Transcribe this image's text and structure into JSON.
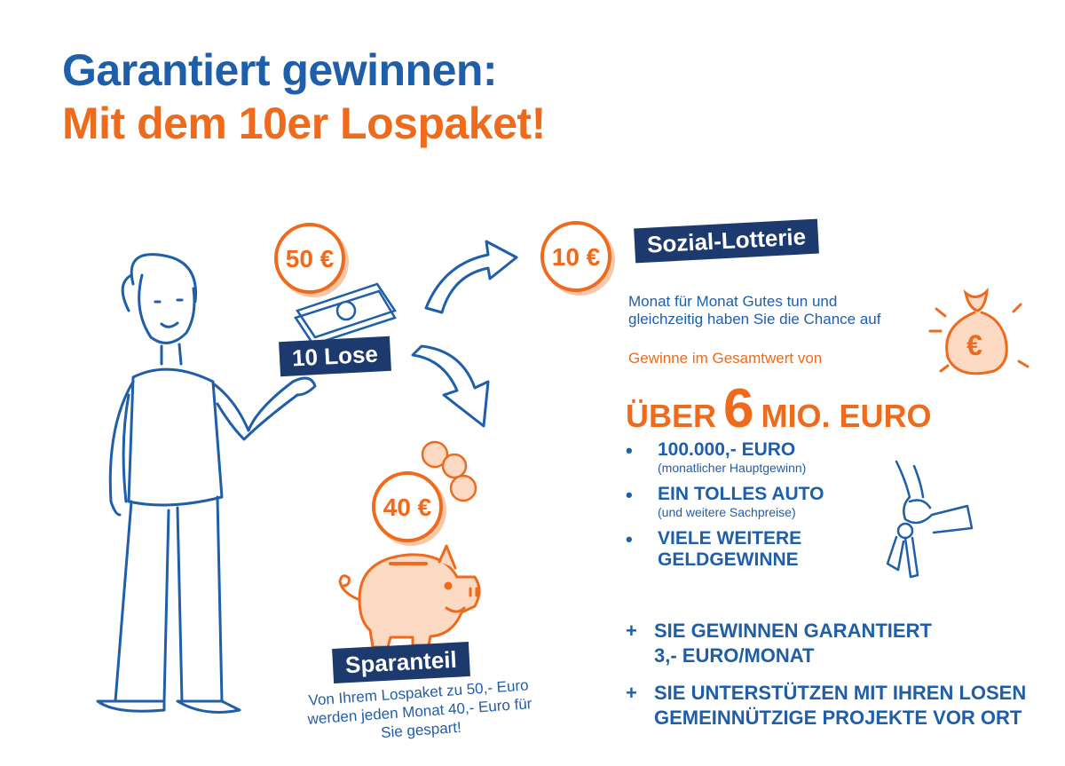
{
  "title": {
    "line1": "Garantiert gewinnen:",
    "line2": "Mit dem 10er Lospaket!"
  },
  "coins": {
    "total": "50 €",
    "lottery": "10 €",
    "savings": "40 €"
  },
  "labels": {
    "lose": "10 Lose",
    "lottery": "Sozial-Lotterie",
    "savings": "Sparanteil"
  },
  "lottery_info": {
    "desc_line1": "Monat für Monat Gutes tun und",
    "desc_line2": "gleichzeitig haben Sie die Chance auf",
    "gesamtwert": "Gewinne im Gesamtwert von",
    "big_prefix": "ÜBER",
    "big_number": "6",
    "big_suffix": "MIO. EURO"
  },
  "bullets": [
    {
      "main": "100.000,- EURO",
      "sub": "(monatlicher Hauptgewinn)"
    },
    {
      "main": "EIN TOLLES AUTO",
      "sub": "(und weitere Sachpreise)"
    },
    {
      "main": "VIELE WEITERE GELDGEWINNE",
      "sub": ""
    }
  ],
  "bullet_symbol": "•",
  "plus_symbol": "+",
  "plus_items": [
    {
      "line1": "SIE GEWINNEN GARANTIERT",
      "line2": "3,- EURO/MONAT"
    },
    {
      "line1": "SIE UNTERSTÜTZEN MIT IHREN LOSEN",
      "line2": "GEMEINNÜTZIGE PROJEKTE VOR ORT"
    }
  ],
  "savings_desc": {
    "line1": "Von Ihrem Lospaket zu 50,- Euro",
    "line2": "werden jeden Monat 40,- Euro für",
    "line3": "Sie gespart!"
  },
  "colors": {
    "blue": "#1f5ea8",
    "navy": "#1c3a6e",
    "orange": "#ee6a1c"
  },
  "icons": [
    "money-bag-euro-icon",
    "car-key-icon",
    "piggy-bank-icon",
    "banknotes-icon",
    "woman-illustration",
    "arrow-icon"
  ]
}
